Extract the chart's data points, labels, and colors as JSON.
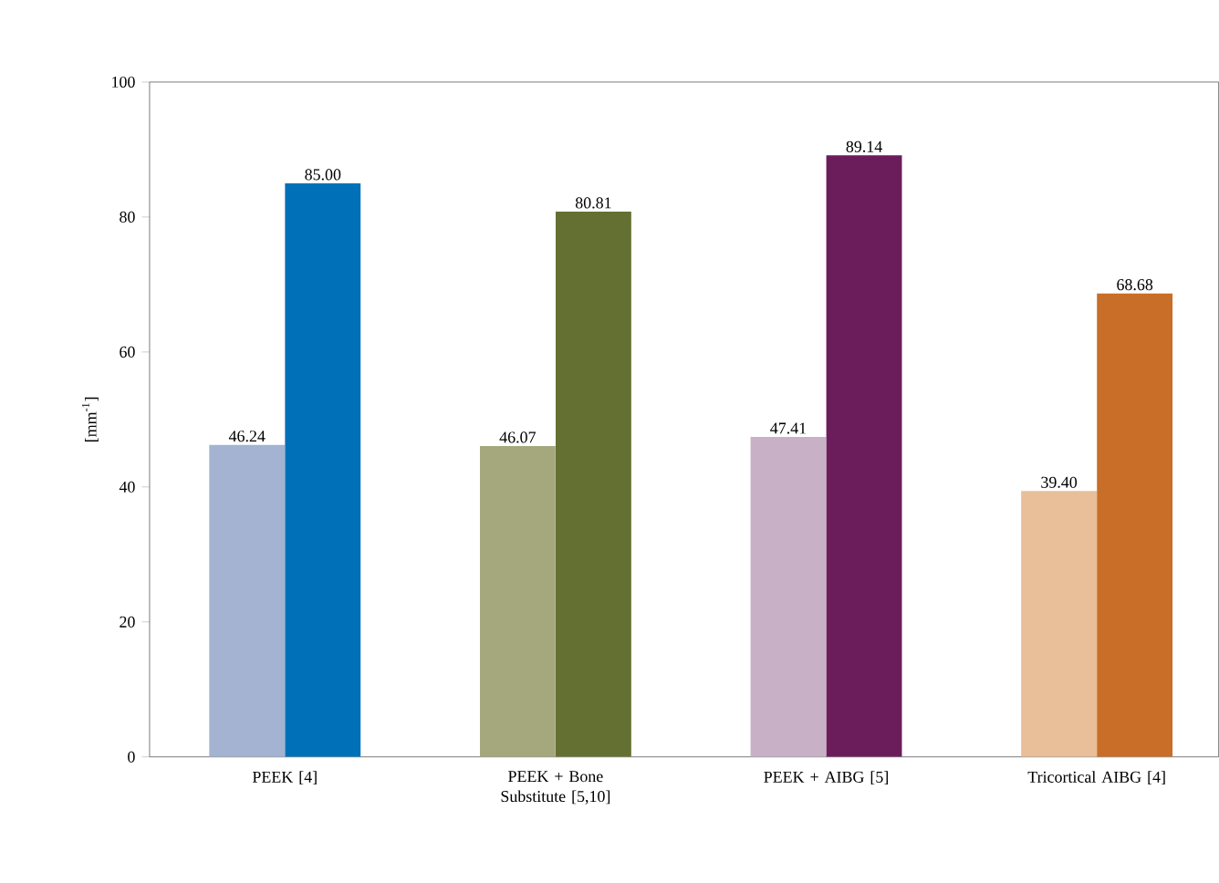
{
  "chart_data": {
    "type": "bar",
    "ylabel": "[mm$^{-1}$]",
    "categories": [
      "PEEK [4]",
      "PEEK + Bone Substitute [5,10]",
      "PEEK + AIBG [5]",
      "Tricortical AIBG [4]"
    ],
    "series": [
      {
        "colors": [
          "#a3b3d1",
          "#a5a77c",
          "#c8b1c6",
          "#e8bf98"
        ],
        "values": [
          46.24,
          46.07,
          47.41,
          39.4
        ],
        "value_labels": [
          "46.24",
          "46.07",
          "47.41",
          "39.40"
        ]
      },
      {
        "colors": [
          "#0070b8",
          "#647032",
          "#6b1d5b",
          "#c86e28"
        ],
        "values": [
          85.0,
          80.81,
          89.14,
          68.68
        ],
        "value_labels": [
          "85.00",
          "80.81",
          "89.14",
          "68.68"
        ]
      }
    ],
    "ylim": [
      0,
      100
    ],
    "yticks": [
      0,
      20,
      40,
      60,
      80,
      100
    ],
    "grid": false
  }
}
